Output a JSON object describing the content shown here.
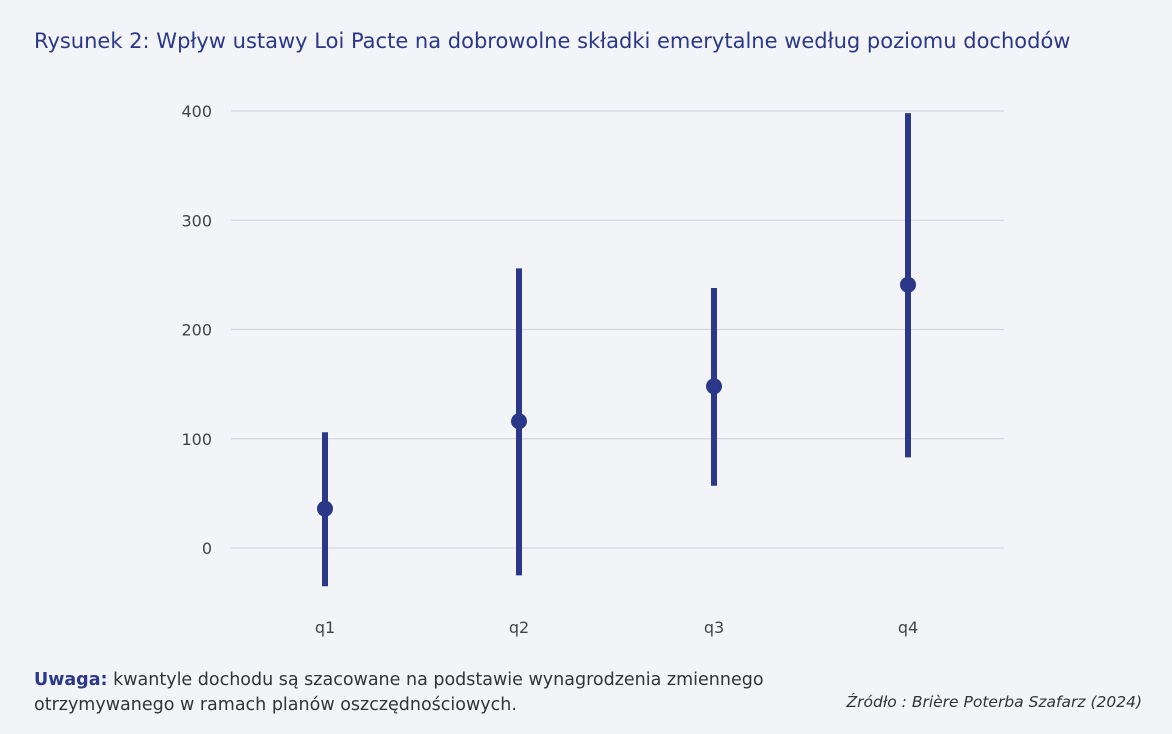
{
  "header": {
    "title": "Rysunek 2: Wpływ ustawy Loi Pacte na dobrowolne składki emerytalne według poziomu dochodów"
  },
  "colors": {
    "accent": "#2b3888",
    "grid": "#d4d7de",
    "background": "#f2f4f8"
  },
  "chart_data": {
    "type": "scatter",
    "title": "Rysunek 2: Wpływ ustawy Loi Pacte na dobrowolne składki emerytalne według poziomu dochodów",
    "xlabel": "",
    "ylabel": "",
    "categories": [
      "q1",
      "q2",
      "q3",
      "q4"
    ],
    "series": [
      {
        "values": [
          36,
          116,
          148,
          241
        ],
        "lower": [
          -35,
          -25,
          57,
          83
        ],
        "upper": [
          106,
          256,
          238,
          398
        ]
      }
    ],
    "yticks": [
      "0",
      "100",
      "200",
      "300",
      "400"
    ],
    "ylim": [
      -40,
      400
    ],
    "grid": true,
    "legend": "none"
  },
  "footer": {
    "note_label": "Uwaga:",
    "note_text": " kwantyle dochodu są szacowane na podstawie wynagrodzenia zmiennego otrzymywanego w ramach planów oszczędnościowych.",
    "source": "Źródło : Brière Poterba Szafarz (2024)"
  }
}
